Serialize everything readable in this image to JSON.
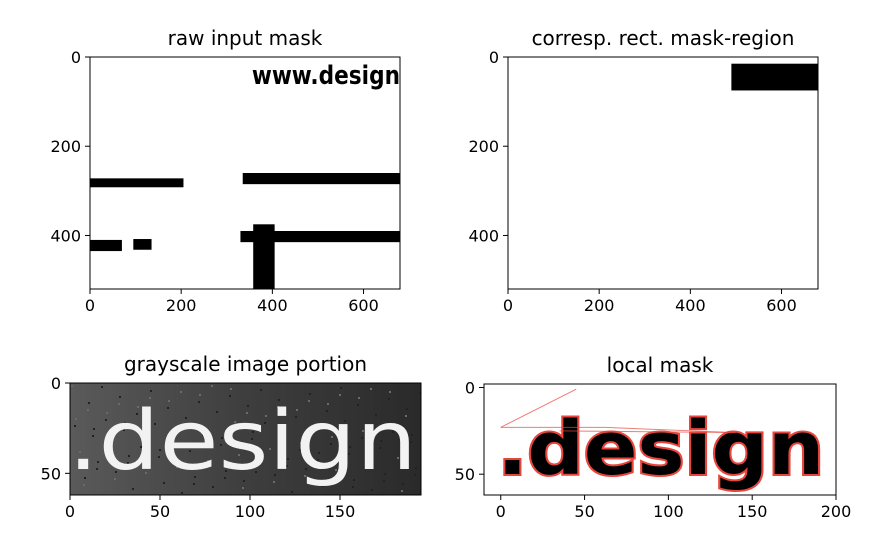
{
  "chart_data": [
    {
      "type": "heatmap",
      "title": "raw input mask",
      "xlim": [
        0,
        680
      ],
      "ylim": [
        520,
        0
      ],
      "xticks": [
        0,
        200,
        400,
        600
      ],
      "yticks": [
        0,
        200,
        400
      ],
      "overlay_text": "www.design",
      "black_regions": [
        {
          "x0": 0,
          "x1": 205,
          "y0": 272,
          "y1": 292
        },
        {
          "x0": 0,
          "x1": 70,
          "y0": 410,
          "y1": 435
        },
        {
          "x0": 95,
          "x1": 135,
          "y0": 408,
          "y1": 432
        },
        {
          "x0": 335,
          "x1": 680,
          "y0": 260,
          "y1": 285
        },
        {
          "x0": 330,
          "x1": 680,
          "y0": 390,
          "y1": 415
        },
        {
          "x0": 358,
          "x1": 405,
          "y0": 375,
          "y1": 520
        }
      ]
    },
    {
      "type": "heatmap",
      "title": "corresp. rect. mask-region",
      "xlim": [
        0,
        680
      ],
      "ylim": [
        520,
        0
      ],
      "xticks": [
        0,
        200,
        400,
        600
      ],
      "yticks": [
        0,
        200,
        400
      ],
      "black_regions": [
        {
          "x0": 490,
          "x1": 680,
          "y0": 15,
          "y1": 75
        }
      ]
    },
    {
      "type": "heatmap",
      "title": "grayscale image portion",
      "xlim": [
        0,
        195
      ],
      "ylim": [
        62,
        0
      ],
      "xticks": [
        0,
        50,
        100,
        150
      ],
      "yticks": [
        0,
        50
      ],
      "image_text": ".design"
    },
    {
      "type": "heatmap",
      "title": "local mask",
      "xlim": [
        -10,
        200
      ],
      "ylim": [
        62,
        -2
      ],
      "xticks": [
        0,
        50,
        100,
        150,
        200
      ],
      "yticks": [
        0,
        50
      ],
      "mask_text": ".design",
      "contour_color": "#e8453c"
    }
  ]
}
